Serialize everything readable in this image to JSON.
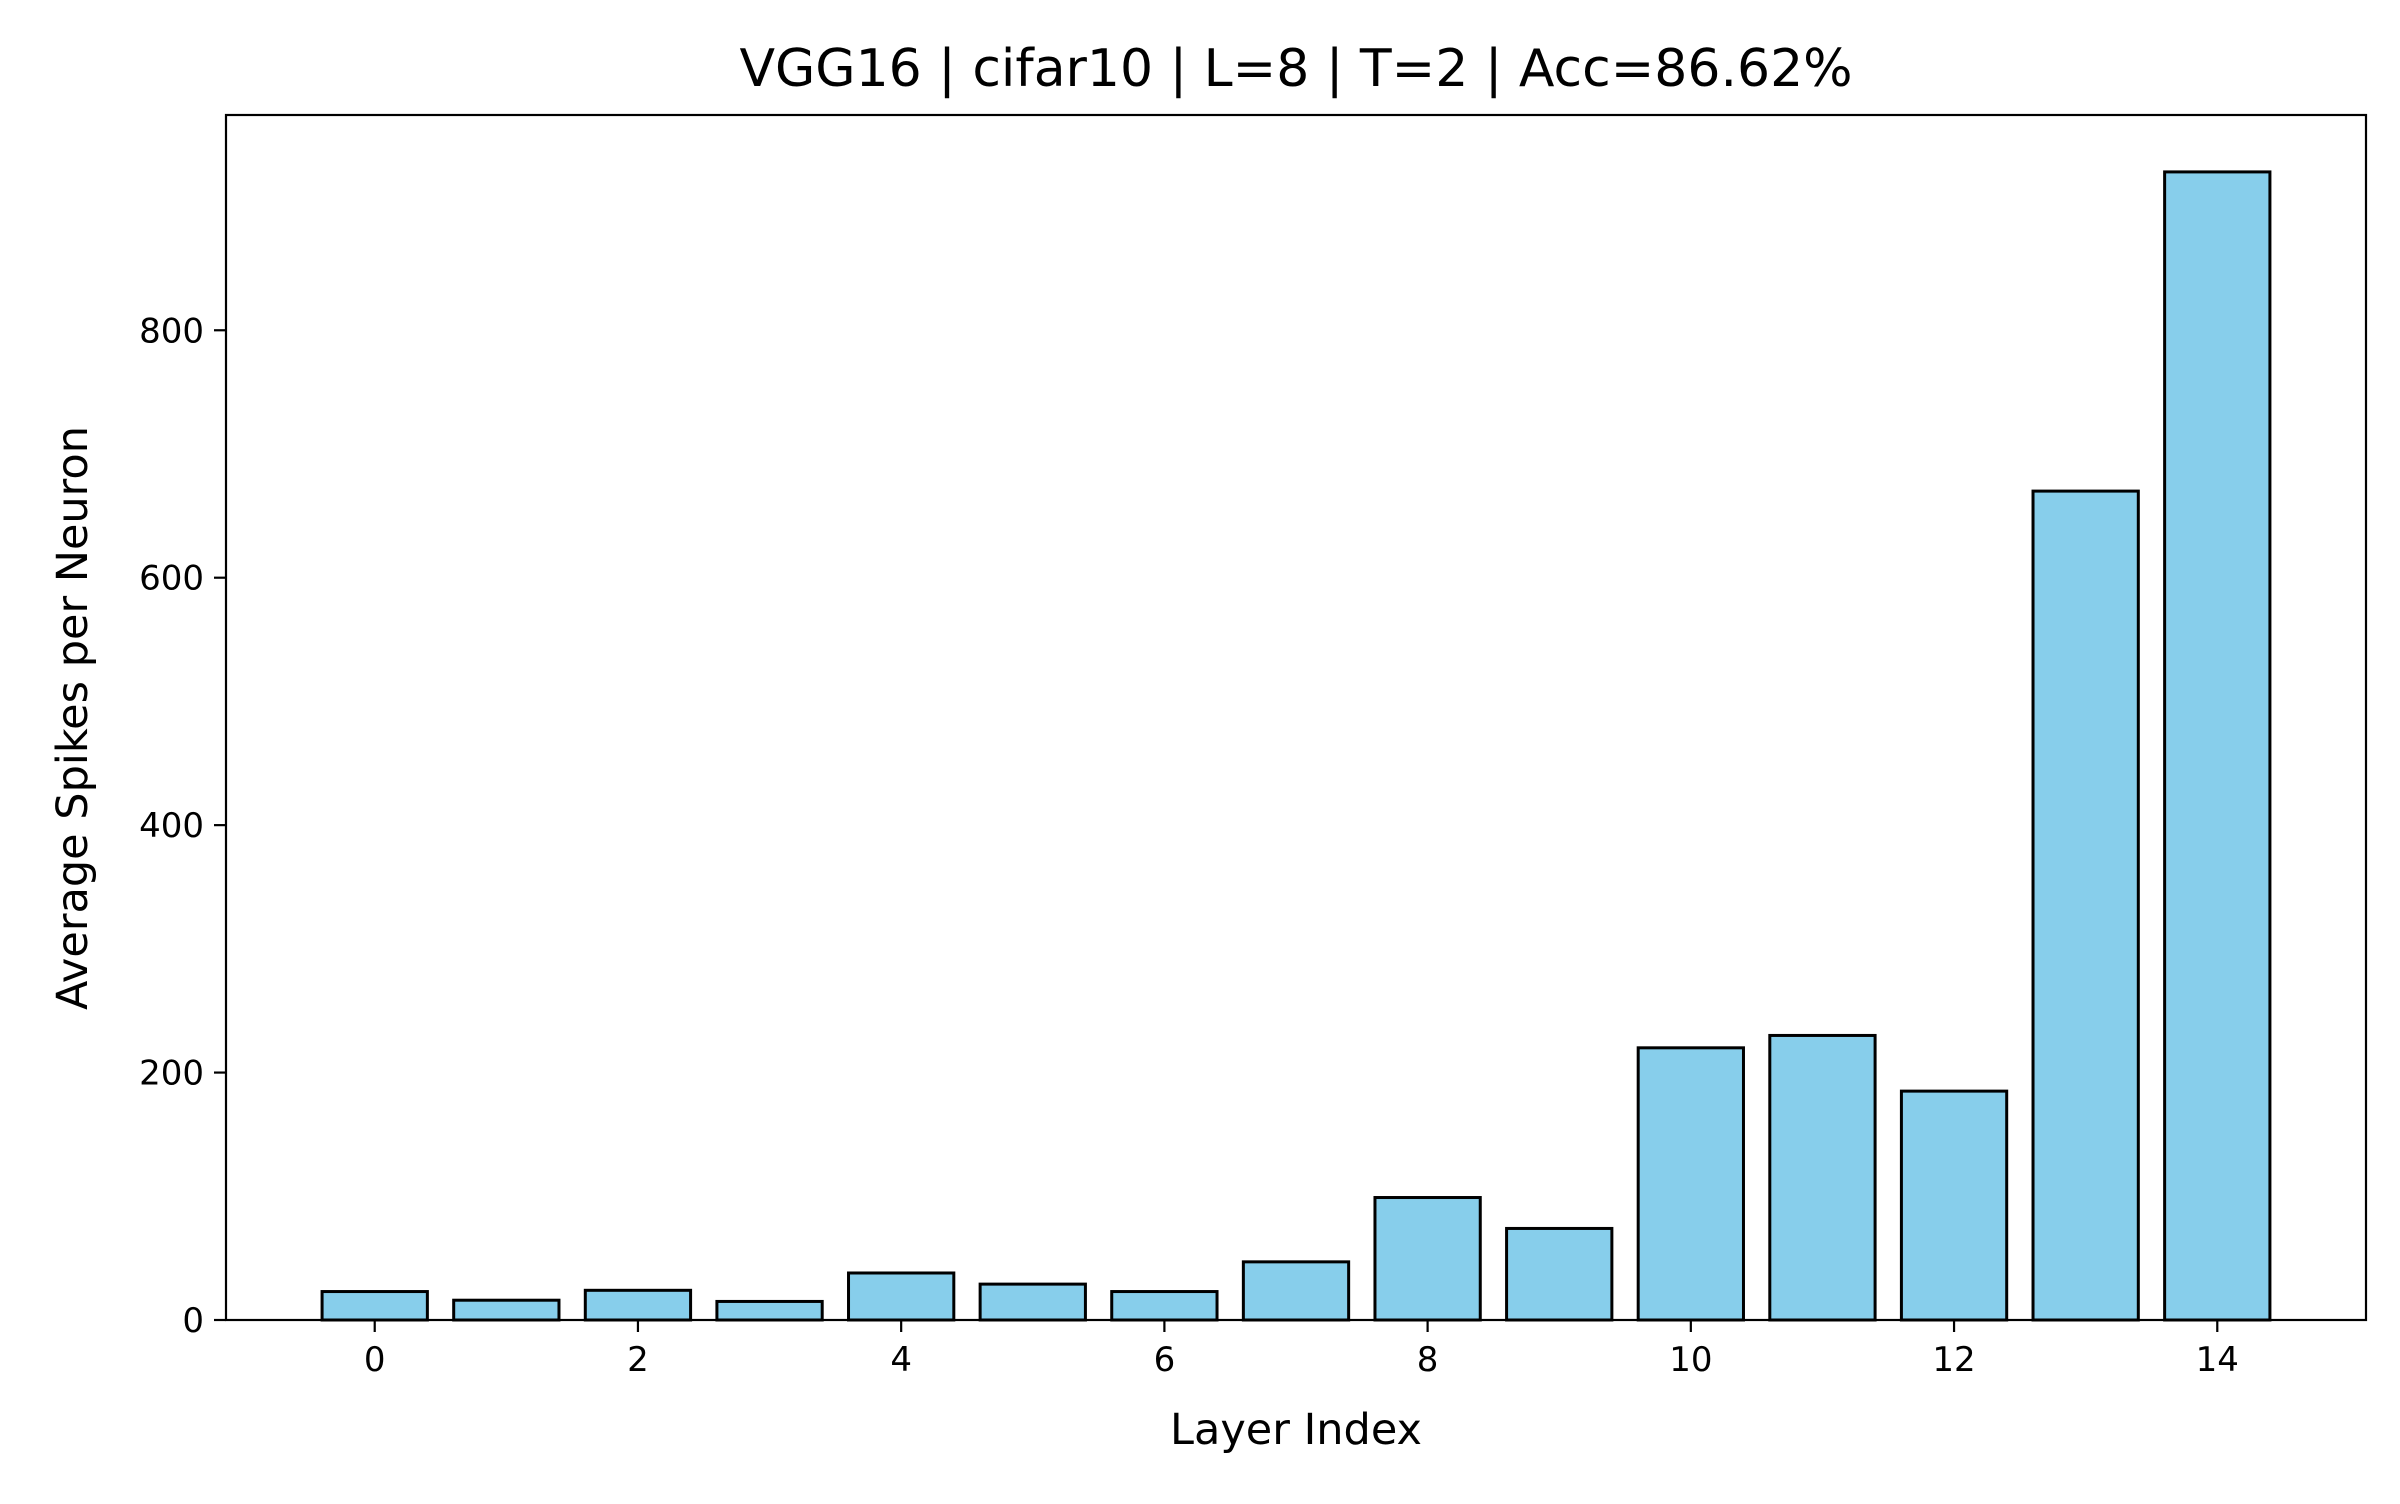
{
  "chart_data": {
    "type": "bar",
    "title": "VGG16 | cifar10 | L=8 | T=2 | Acc=86.62%",
    "xlabel": "Layer Index",
    "ylabel": "Average Spikes per Neuron",
    "categories": [
      0,
      1,
      2,
      3,
      4,
      5,
      6,
      7,
      8,
      9,
      10,
      11,
      12,
      13,
      14
    ],
    "values": [
      23,
      16,
      24,
      15,
      38,
      29,
      23,
      47,
      99,
      74,
      220,
      230,
      185,
      670,
      928
    ],
    "xlim": [
      -1.13,
      15.13
    ],
    "ylim": [
      0,
      974
    ],
    "xticks": [
      0,
      2,
      4,
      6,
      8,
      10,
      12,
      14
    ],
    "yticks": [
      0,
      200,
      400,
      600,
      800
    ],
    "grid": false,
    "legend": "none",
    "colors": {
      "bar_fill": "#87CEEB",
      "bar_edge": "#000000",
      "axis": "#000000",
      "background": "#ffffff"
    }
  }
}
